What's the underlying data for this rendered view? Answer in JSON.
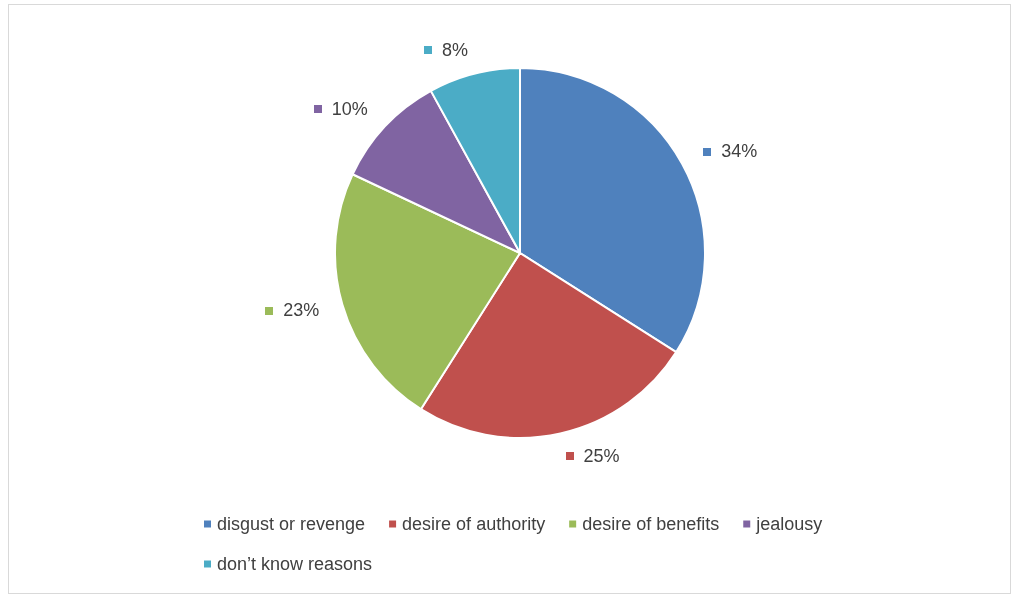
{
  "chart_data": {
    "type": "pie",
    "categories": [
      "disgust or revenge",
      "desire of authority",
      "desire of benefits",
      "jealousy",
      "don’t know reasons"
    ],
    "values": [
      34,
      25,
      23,
      10,
      8
    ],
    "value_labels": [
      "34%",
      "25%",
      "23%",
      "10%",
      "8%"
    ],
    "colors": [
      "#4f81bd",
      "#c0504d",
      "#9bbb59",
      "#8064a2",
      "#4bacc6"
    ],
    "legend": "bottom"
  }
}
